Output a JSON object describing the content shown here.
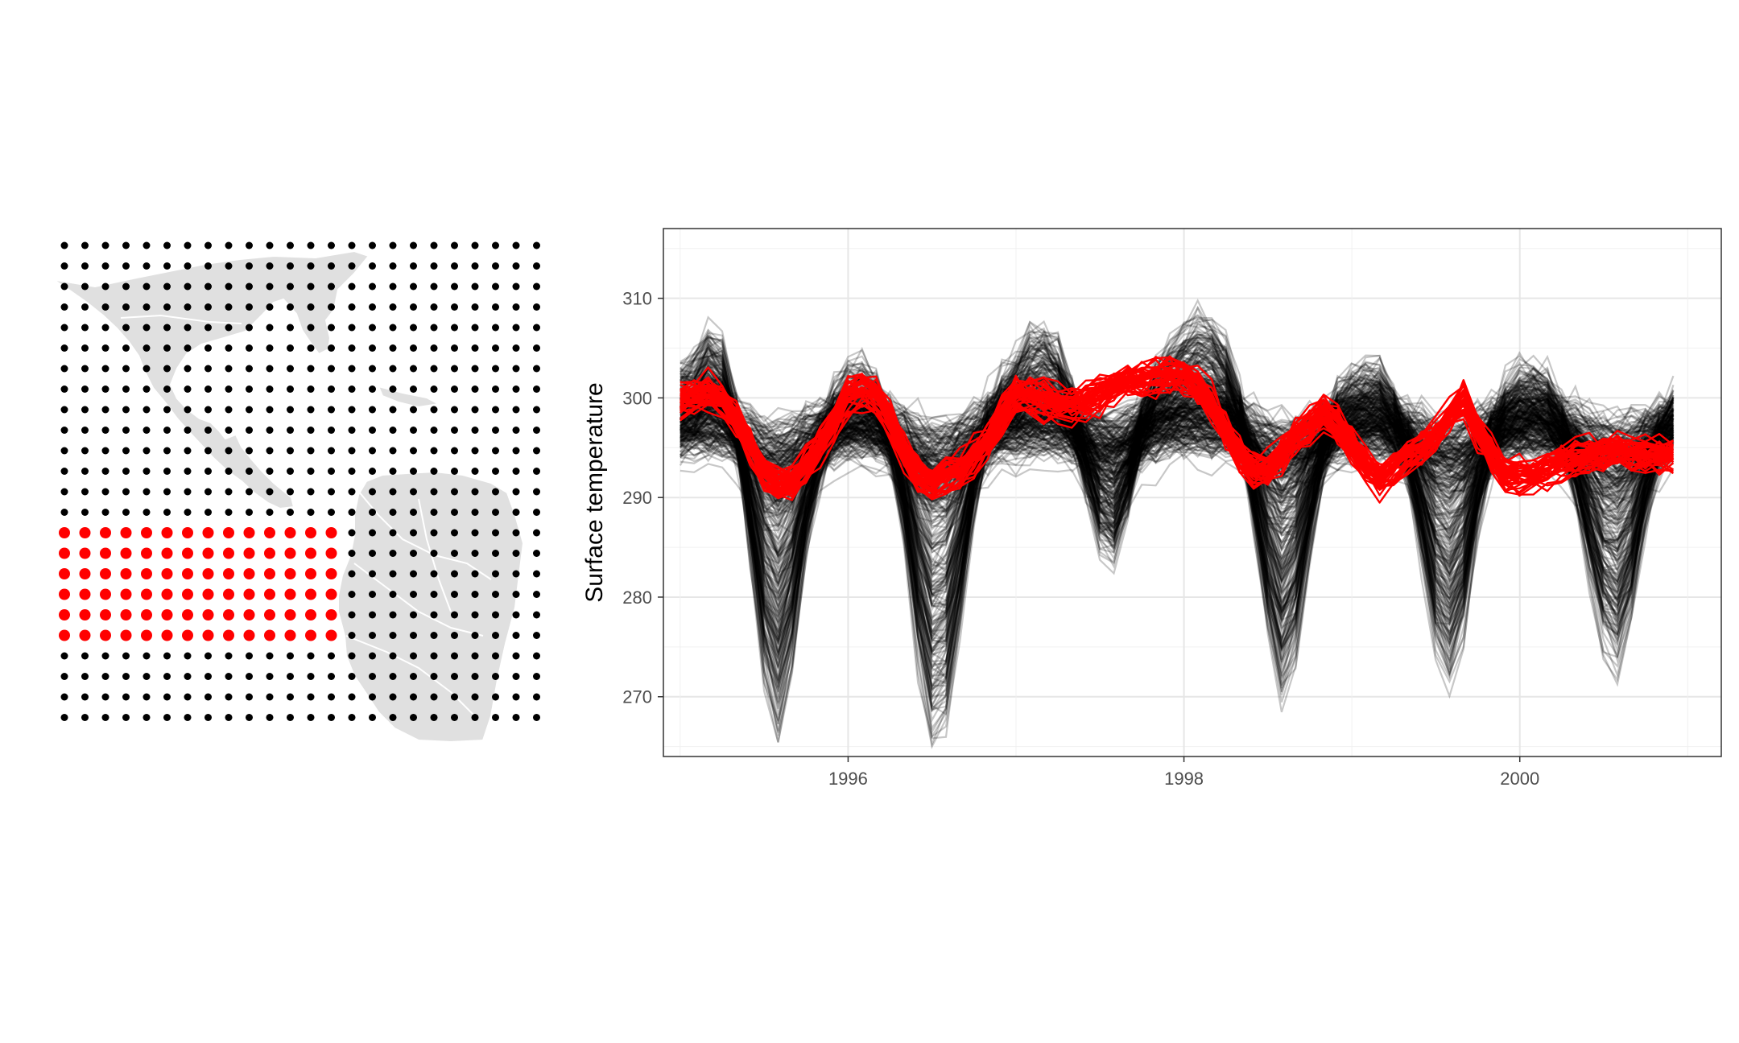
{
  "figure": {
    "background": "#ffffff"
  },
  "map_panel": {
    "land_color": "#e0e0e0",
    "land_outline_color": "#ffffff",
    "grid": {
      "columns": 24,
      "rows": 24
    },
    "point_colors": {
      "default": "#000000",
      "highlighted": "#ff0000"
    },
    "highlighted_region": {
      "columns": [
        0,
        13
      ],
      "rows": [
        14,
        19
      ]
    }
  },
  "chart_data": {
    "type": "line",
    "title": "",
    "xlabel": "",
    "ylabel": "Surface temperature",
    "xlim": [
      1994.9,
      2001.2
    ],
    "ylim": [
      264,
      317
    ],
    "x_ticks": [
      1996,
      1998,
      2000
    ],
    "x_tick_labels": [
      "1996",
      "1998",
      "2000"
    ],
    "y_ticks": [
      270,
      280,
      290,
      300,
      310
    ],
    "y_tick_labels": [
      "270",
      "280",
      "290",
      "300",
      "310"
    ],
    "grid": true,
    "legend": "none",
    "x_start": 1995.0,
    "x_step": 0.0833,
    "n_points": 72,
    "colors": {
      "background_series": "#000000",
      "highlighted_series": "#ff0000",
      "background_opacity": 0.22
    },
    "background_series_count": 300,
    "highlighted_series_count": 40,
    "background_series_mean": [
      297.5,
      297.8,
      298.3,
      298.0,
      296.9,
      294.8,
      292.6,
      291.6,
      292.8,
      294.8,
      296.2,
      297.1,
      297.5,
      297.6,
      297.4,
      296.7,
      295.1,
      293.0,
      291.5,
      291.8,
      293.5,
      295.5,
      296.8,
      297.4,
      297.8,
      298.2,
      298.3,
      298.0,
      297.2,
      296.0,
      294.9,
      294.6,
      295.5,
      296.8,
      297.6,
      298.0,
      298.3,
      298.5,
      298.4,
      298.0,
      297.1,
      295.3,
      293.4,
      292.2,
      293.0,
      294.8,
      296.3,
      297.2,
      297.4,
      297.6,
      297.6,
      297.1,
      296.2,
      294.7,
      293.1,
      292.5,
      293.4,
      295.2,
      296.5,
      297.2,
      297.5,
      297.6,
      297.4,
      296.8,
      295.8,
      294.4,
      293.2,
      292.8,
      293.7,
      295.3,
      296.5,
      297.0
    ],
    "highlighted_series_mean": [
      300.0,
      300.5,
      300.8,
      300.0,
      298.0,
      295.5,
      293.0,
      291.5,
      292.0,
      293.5,
      295.5,
      298.0,
      300.5,
      301.0,
      300.5,
      298.0,
      295.0,
      292.5,
      291.5,
      292.5,
      293.0,
      294.5,
      296.0,
      298.5,
      300.5,
      300.5,
      300.0,
      299.5,
      299.5,
      300.0,
      300.5,
      301.5,
      302.0,
      302.0,
      302.5,
      302.5,
      302.5,
      301.5,
      299.5,
      297.0,
      294.5,
      293.0,
      293.0,
      294.5,
      296.5,
      297.5,
      299.0,
      297.5,
      295.5,
      293.5,
      292.0,
      293.0,
      294.5,
      295.0,
      296.5,
      298.5,
      300.0,
      297.0,
      294.5,
      292.5,
      292.5,
      292.5,
      293.0,
      294.0,
      294.0,
      294.5,
      294.5,
      295.0,
      294.5,
      294.5,
      294.5,
      294.5
    ]
  }
}
